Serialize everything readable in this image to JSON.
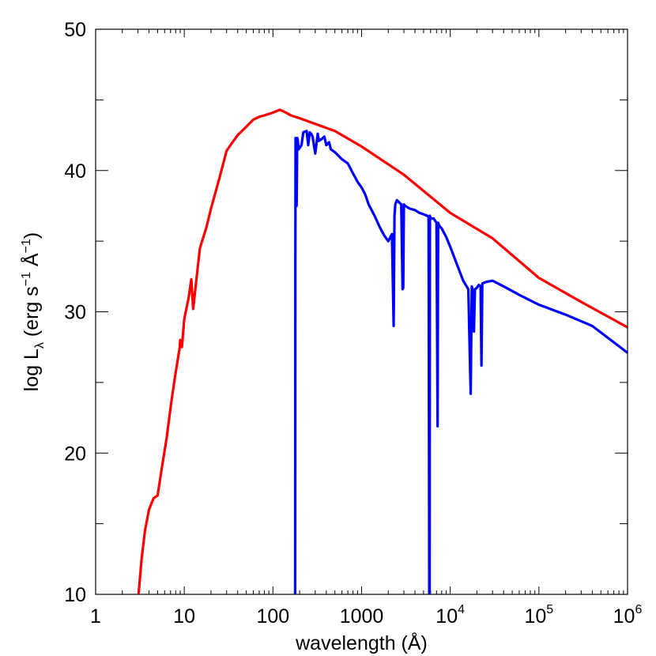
{
  "chart_data": {
    "type": "line",
    "xscale": "log",
    "xlim": [
      1,
      1000000
    ],
    "ylim": [
      10,
      50
    ],
    "xlabel": "wavelength (Å)",
    "ylabel": {
      "prefix": "log L",
      "sub": "λ",
      "mid1": " (erg s",
      "sup1": "−1",
      "mid2": " Å",
      "sup2": "−1",
      "suffix": ")"
    },
    "x_ticks": [
      {
        "value": 1,
        "label": "1"
      },
      {
        "value": 10,
        "label": "10"
      },
      {
        "value": 100,
        "label": "100"
      },
      {
        "value": 1000,
        "label": "1000"
      },
      {
        "value": 10000,
        "base": "10",
        "exp": "4"
      },
      {
        "value": 100000,
        "base": "10",
        "exp": "5"
      },
      {
        "value": 1000000,
        "base": "10",
        "exp": "6"
      }
    ],
    "y_ticks": [
      {
        "value": 10,
        "label": "10"
      },
      {
        "value": 20,
        "label": "20"
      },
      {
        "value": 30,
        "label": "30"
      },
      {
        "value": 40,
        "label": "40"
      },
      {
        "value": 50,
        "label": "50"
      }
    ],
    "series": [
      {
        "color": "#ff0000",
        "x": [
          3.0,
          3.3,
          3.6,
          4.0,
          4.5,
          5.0,
          5.6,
          6.3,
          7.1,
          7.9,
          8.9,
          9.0,
          9.4,
          10.0,
          11.2,
          12.0,
          12.6,
          14.1,
          15.0,
          17.8,
          20.0,
          25.0,
          30.0,
          35.0,
          40.0,
          50.0,
          60.0,
          70.0,
          80.0,
          100,
          120,
          140,
          160,
          200,
          300,
          500,
          1000,
          3000,
          10000,
          30000,
          100000,
          300000,
          1000000
        ],
        "y": [
          9.5,
          12.5,
          14.5,
          16.0,
          16.8,
          17.0,
          19.0,
          21.0,
          23.5,
          25.5,
          27.5,
          28.0,
          27.5,
          29.5,
          31.0,
          32.3,
          30.2,
          33.0,
          34.5,
          36.0,
          37.3,
          39.5,
          41.4,
          42.0,
          42.5,
          43.1,
          43.6,
          43.8,
          43.9,
          44.1,
          44.3,
          44.1,
          43.9,
          43.7,
          43.3,
          42.8,
          41.7,
          39.7,
          37.0,
          35.2,
          32.4,
          30.7,
          28.9
        ]
      },
      {
        "color": "#0000ff",
        "x": [
          178,
          178.5,
          179,
          180,
          183,
          185,
          188,
          190,
          195,
          200,
          210,
          220,
          240,
          250,
          260,
          270,
          280,
          300,
          320,
          330,
          350,
          380,
          400,
          430,
          450,
          500,
          600,
          700,
          800,
          900,
          1000,
          1100,
          1200,
          1400,
          1600,
          1800,
          2000,
          2200,
          2300,
          2350,
          2400,
          2500,
          2600,
          2800,
          2900,
          2950,
          3000,
          3100,
          3500,
          4000,
          4500,
          5000,
          5500,
          5700,
          5800,
          5850,
          5900,
          6000,
          6500,
          7000,
          7200,
          7300,
          7500,
          8000,
          9000,
          10000,
          12000,
          14000,
          16000,
          17000,
          17500,
          18000,
          18500,
          19000,
          20000,
          21000,
          22000,
          22500,
          23000,
          25000,
          30000,
          40000,
          60000,
          100000,
          200000,
          400000,
          1000000
        ],
        "y": [
          9.5,
          20.0,
          34.0,
          42.3,
          42.2,
          37.5,
          42.3,
          42.2,
          41.5,
          41.6,
          41.8,
          42.7,
          42.8,
          41.8,
          42.7,
          42.6,
          42.4,
          41.2,
          42.6,
          42.1,
          42.2,
          42.4,
          41.8,
          42.0,
          41.5,
          41.3,
          40.8,
          40.5,
          39.8,
          39.2,
          38.8,
          38.3,
          37.6,
          36.8,
          36.0,
          35.4,
          35.0,
          35.5,
          29.0,
          36.8,
          37.6,
          37.9,
          37.8,
          37.6,
          31.6,
          31.7,
          37.6,
          37.5,
          37.3,
          37.2,
          37.0,
          36.9,
          36.8,
          36.7,
          9.5,
          9.5,
          36.8,
          36.6,
          36.6,
          36.3,
          21.9,
          36.3,
          36.1,
          35.9,
          35.3,
          34.6,
          33.3,
          32.2,
          31.6,
          24.2,
          31.8,
          31.5,
          28.6,
          31.6,
          31.7,
          31.9,
          31.8,
          26.2,
          32.0,
          32.1,
          32.2,
          31.8,
          31.2,
          30.5,
          29.8,
          29.0,
          27.1
        ]
      }
    ]
  }
}
